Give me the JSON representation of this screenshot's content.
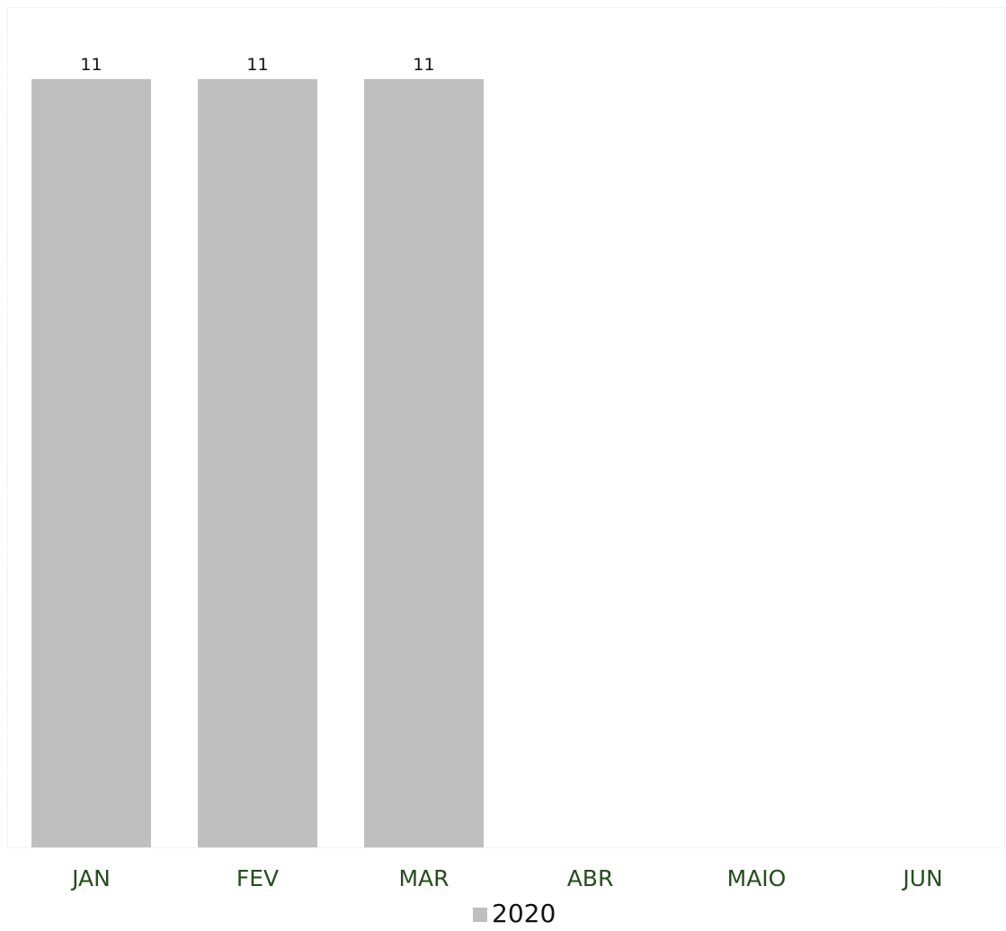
{
  "chart_data": {
    "type": "bar",
    "categories": [
      "JAN",
      "FEV",
      "MAR",
      "ABR",
      "MAIO",
      "JUN"
    ],
    "series": [
      {
        "name": "2020",
        "values": [
          11,
          11,
          11,
          null,
          null,
          null
        ],
        "color": "#bfbfbf"
      }
    ],
    "data_labels": [
      "11",
      "11",
      "11"
    ],
    "ylim": [
      0,
      11
    ],
    "grid": false,
    "legend": "bottom-center",
    "colors": {
      "bar": "#bfbfbf",
      "category_label": "#234e1c",
      "data_label": "#111111",
      "legend_text": "#111111",
      "plot_border": "#d9d9d9"
    }
  }
}
